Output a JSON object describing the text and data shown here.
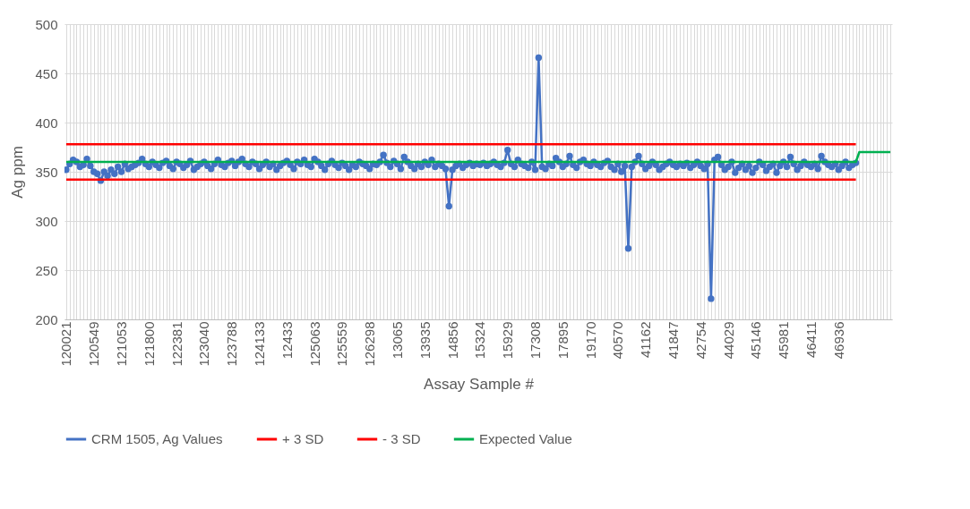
{
  "chart_data": {
    "type": "line",
    "xlabel": "Assay Sample #",
    "ylabel": "Ag ppm",
    "categories": [
      "120021",
      null,
      null,
      null,
      null,
      null,
      null,
      null,
      "120549",
      null,
      null,
      null,
      null,
      null,
      null,
      null,
      "121053",
      null,
      null,
      null,
      null,
      null,
      null,
      null,
      "121800",
      null,
      null,
      null,
      null,
      null,
      null,
      null,
      "122381",
      null,
      null,
      null,
      null,
      null,
      null,
      null,
      "123040",
      null,
      null,
      null,
      null,
      null,
      null,
      null,
      "123788",
      null,
      null,
      null,
      null,
      null,
      null,
      null,
      "124133",
      null,
      null,
      null,
      null,
      null,
      null,
      null,
      "12433",
      null,
      null,
      null,
      null,
      null,
      null,
      null,
      "125063",
      null,
      null,
      null,
      null,
      null,
      null,
      null,
      "125559",
      null,
      null,
      null,
      null,
      null,
      null,
      null,
      "126298",
      null,
      null,
      null,
      null,
      null,
      null,
      null,
      "13065",
      null,
      null,
      null,
      null,
      null,
      null,
      null,
      "13935",
      null,
      null,
      null,
      null,
      null,
      null,
      null,
      "14856",
      null,
      null,
      null,
      null,
      null,
      null,
      null,
      "15324",
      null,
      null,
      null,
      null,
      null,
      null,
      null,
      "15929",
      null,
      null,
      null,
      null,
      null,
      null,
      null,
      "17308",
      null,
      null,
      null,
      null,
      null,
      null,
      null,
      "17895",
      null,
      null,
      null,
      null,
      null,
      null,
      null,
      "19170",
      null,
      null,
      null,
      null,
      null,
      null,
      null,
      "40570",
      null,
      null,
      null,
      null,
      null,
      null,
      null,
      "41162",
      null,
      null,
      null,
      null,
      null,
      null,
      null,
      "41847",
      null,
      null,
      null,
      null,
      null,
      null,
      null,
      "42754",
      null,
      null,
      null,
      null,
      null,
      null,
      null,
      "44029",
      null,
      null,
      null,
      null,
      null,
      null,
      null,
      "45146",
      null,
      null,
      null,
      null,
      null,
      null,
      null,
      "45981",
      null,
      null,
      null,
      null,
      null,
      null,
      null,
      "46411",
      null,
      null,
      null,
      null,
      null,
      null,
      null,
      "46936",
      null,
      null,
      null,
      null,
      null,
      null,
      null,
      null,
      null,
      null,
      null,
      null,
      null,
      null,
      null
    ],
    "ylim": [
      200,
      500
    ],
    "yticks": [
      200,
      250,
      300,
      350,
      400,
      450,
      500
    ],
    "grid": true,
    "legend": "bottom",
    "series": [
      {
        "name": "CRM 1505, Ag Values",
        "color": "#4472c4",
        "marker": "circle",
        "values": [
          352,
          358,
          362,
          360,
          355,
          357,
          363,
          356,
          350,
          348,
          341,
          350,
          346,
          352,
          348,
          355,
          350,
          358,
          353,
          355,
          357,
          359,
          363,
          358,
          355,
          360,
          357,
          354,
          359,
          361,
          356,
          353,
          360,
          358,
          354,
          357,
          361,
          352,
          355,
          358,
          360,
          356,
          353,
          358,
          362,
          357,
          355,
          359,
          361,
          356,
          360,
          363,
          358,
          355,
          360,
          358,
          353,
          357,
          360,
          355,
          358,
          352,
          356,
          359,
          361,
          357,
          353,
          360,
          358,
          362,
          357,
          355,
          363,
          360,
          356,
          352,
          358,
          361,
          357,
          354,
          359,
          356,
          352,
          357,
          355,
          360,
          358,
          356,
          353,
          358,
          357,
          360,
          367,
          359,
          355,
          361,
          358,
          353,
          365,
          360,
          356,
          353,
          358,
          355,
          360,
          357,
          362,
          355,
          358,
          356,
          353,
          315,
          352,
          356,
          358,
          354,
          357,
          359,
          356,
          358,
          357,
          359,
          356,
          358,
          360,
          357,
          355,
          359,
          372,
          358,
          355,
          362,
          358,
          356,
          354,
          360,
          352,
          466,
          355,
          353,
          358,
          356,
          364,
          360,
          355,
          358,
          366,
          357,
          354,
          360,
          362,
          358,
          356,
          360,
          357,
          355,
          359,
          361,
          355,
          352,
          358,
          350,
          356,
          272,
          355,
          360,
          366,
          358,
          353,
          356,
          360,
          357,
          352,
          355,
          358,
          360,
          357,
          355,
          358,
          356,
          359,
          354,
          357,
          360,
          356,
          353,
          358,
          221,
          362,
          365,
          357,
          352,
          355,
          360,
          349,
          354,
          358,
          352,
          356,
          349,
          354,
          360,
          357,
          351,
          355,
          358,
          349,
          356,
          360,
          355,
          365,
          358,
          352,
          356,
          360,
          357,
          355,
          358,
          353,
          366,
          360,
          357,
          355,
          358,
          352,
          356,
          360,
          354,
          357,
          359,
          null,
          null,
          null,
          null,
          null,
          null,
          null,
          null,
          null,
          null
        ]
      },
      {
        "name": "+ 3 SD",
        "color": "#ff0000",
        "marker": "none",
        "values": [
          378,
          378,
          378,
          378,
          378,
          378,
          378,
          378,
          378,
          378,
          378,
          378,
          378,
          378,
          378,
          378,
          378,
          378,
          378,
          378,
          378,
          378,
          378,
          378,
          378,
          378,
          378,
          378,
          378,
          378,
          378,
          378,
          378,
          378,
          378,
          378,
          378,
          378,
          378,
          378,
          378,
          378,
          378,
          378,
          378,
          378,
          378,
          378,
          378,
          378,
          378,
          378,
          378,
          378,
          378,
          378,
          378,
          378,
          378,
          378,
          378,
          378,
          378,
          378,
          378,
          378,
          378,
          378,
          378,
          378,
          378,
          378,
          378,
          378,
          378,
          378,
          378,
          378,
          378,
          378,
          378,
          378,
          378,
          378,
          378,
          378,
          378,
          378,
          378,
          378,
          378,
          378,
          378,
          378,
          378,
          378,
          378,
          378,
          378,
          378,
          378,
          378,
          378,
          378,
          378,
          378,
          378,
          378,
          378,
          378,
          378,
          378,
          378,
          378,
          378,
          378,
          378,
          378,
          378,
          378,
          378,
          378,
          378,
          378,
          378,
          378,
          378,
          378,
          378,
          378,
          378,
          378,
          378,
          378,
          378,
          378,
          378,
          378,
          378,
          378,
          378,
          378,
          378,
          378,
          378,
          378,
          378,
          378,
          378,
          378,
          378,
          378,
          378,
          378,
          378,
          378,
          378,
          378,
          378,
          378,
          378,
          378,
          378,
          378,
          378,
          378,
          378,
          378,
          378,
          378,
          378,
          378,
          378,
          378,
          378,
          378,
          378,
          378,
          378,
          378,
          378,
          378,
          378,
          378,
          378,
          378,
          378,
          378,
          378,
          378,
          378,
          378,
          378,
          378,
          378,
          378,
          378,
          378,
          378,
          378,
          378,
          378,
          378,
          378,
          378,
          378,
          378,
          378,
          378,
          378,
          378,
          378,
          378,
          378,
          378,
          378,
          378,
          378,
          378,
          378,
          378,
          378,
          378,
          378,
          378,
          378,
          378,
          378,
          378,
          378,
          null,
          null,
          null,
          null,
          null,
          null,
          null,
          null,
          null,
          null
        ]
      },
      {
        "name": "- 3 SD",
        "color": "#ff0000",
        "marker": "none",
        "values": [
          342,
          342,
          342,
          342,
          342,
          342,
          342,
          342,
          342,
          342,
          342,
          342,
          342,
          342,
          342,
          342,
          342,
          342,
          342,
          342,
          342,
          342,
          342,
          342,
          342,
          342,
          342,
          342,
          342,
          342,
          342,
          342,
          342,
          342,
          342,
          342,
          342,
          342,
          342,
          342,
          342,
          342,
          342,
          342,
          342,
          342,
          342,
          342,
          342,
          342,
          342,
          342,
          342,
          342,
          342,
          342,
          342,
          342,
          342,
          342,
          342,
          342,
          342,
          342,
          342,
          342,
          342,
          342,
          342,
          342,
          342,
          342,
          342,
          342,
          342,
          342,
          342,
          342,
          342,
          342,
          342,
          342,
          342,
          342,
          342,
          342,
          342,
          342,
          342,
          342,
          342,
          342,
          342,
          342,
          342,
          342,
          342,
          342,
          342,
          342,
          342,
          342,
          342,
          342,
          342,
          342,
          342,
          342,
          342,
          342,
          342,
          342,
          342,
          342,
          342,
          342,
          342,
          342,
          342,
          342,
          342,
          342,
          342,
          342,
          342,
          342,
          342,
          342,
          342,
          342,
          342,
          342,
          342,
          342,
          342,
          342,
          342,
          342,
          342,
          342,
          342,
          342,
          342,
          342,
          342,
          342,
          342,
          342,
          342,
          342,
          342,
          342,
          342,
          342,
          342,
          342,
          342,
          342,
          342,
          342,
          342,
          342,
          342,
          342,
          342,
          342,
          342,
          342,
          342,
          342,
          342,
          342,
          342,
          342,
          342,
          342,
          342,
          342,
          342,
          342,
          342,
          342,
          342,
          342,
          342,
          342,
          342,
          342,
          342,
          342,
          342,
          342,
          342,
          342,
          342,
          342,
          342,
          342,
          342,
          342,
          342,
          342,
          342,
          342,
          342,
          342,
          342,
          342,
          342,
          342,
          342,
          342,
          342,
          342,
          342,
          342,
          342,
          342,
          342,
          342,
          342,
          342,
          342,
          342,
          342,
          342,
          342,
          342,
          342,
          342,
          null,
          null,
          null,
          null,
          null,
          null,
          null,
          null,
          null,
          null
        ]
      },
      {
        "name": "Expected Value",
        "color": "#00b050",
        "marker": "none",
        "values": [
          360,
          360,
          360,
          360,
          360,
          360,
          360,
          360,
          360,
          360,
          360,
          360,
          360,
          360,
          360,
          360,
          360,
          360,
          360,
          360,
          360,
          360,
          360,
          360,
          360,
          360,
          360,
          360,
          360,
          360,
          360,
          360,
          360,
          360,
          360,
          360,
          360,
          360,
          360,
          360,
          360,
          360,
          360,
          360,
          360,
          360,
          360,
          360,
          360,
          360,
          360,
          360,
          360,
          360,
          360,
          360,
          360,
          360,
          360,
          360,
          360,
          360,
          360,
          360,
          360,
          360,
          360,
          360,
          360,
          360,
          360,
          360,
          360,
          360,
          360,
          360,
          360,
          360,
          360,
          360,
          360,
          360,
          360,
          360,
          360,
          360,
          360,
          360,
          360,
          360,
          360,
          360,
          360,
          360,
          360,
          360,
          360,
          360,
          360,
          360,
          360,
          360,
          360,
          360,
          360,
          360,
          360,
          360,
          360,
          360,
          360,
          360,
          360,
          360,
          360,
          360,
          360,
          360,
          360,
          360,
          360,
          360,
          360,
          360,
          360,
          360,
          360,
          360,
          360,
          360,
          360,
          360,
          360,
          360,
          360,
          360,
          360,
          360,
          360,
          360,
          360,
          360,
          360,
          360,
          360,
          360,
          360,
          360,
          360,
          360,
          360,
          360,
          360,
          360,
          360,
          360,
          360,
          360,
          360,
          360,
          360,
          360,
          360,
          360,
          360,
          360,
          360,
          360,
          360,
          360,
          360,
          360,
          360,
          360,
          360,
          360,
          360,
          360,
          360,
          360,
          360,
          360,
          360,
          360,
          360,
          360,
          360,
          360,
          360,
          360,
          360,
          360,
          360,
          360,
          360,
          360,
          360,
          360,
          360,
          360,
          360,
          360,
          360,
          360,
          360,
          360,
          360,
          360,
          360,
          360,
          360,
          360,
          360,
          360,
          360,
          360,
          360,
          360,
          360,
          360,
          360,
          360,
          360,
          360,
          360,
          360,
          360,
          360,
          360,
          360,
          370,
          370,
          370,
          370,
          370,
          370,
          370,
          370,
          370,
          370
        ]
      }
    ]
  }
}
